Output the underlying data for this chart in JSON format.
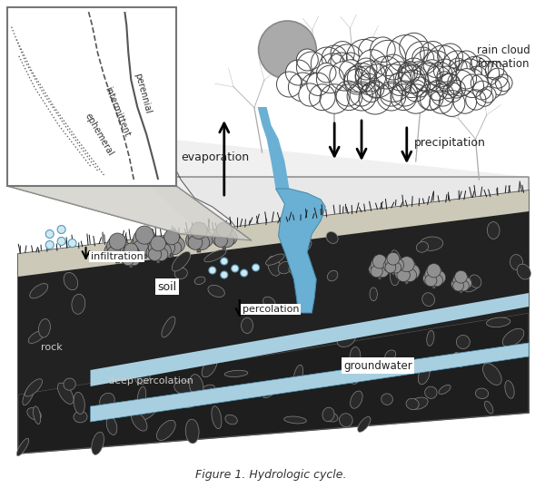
{
  "title": "Figure 1. Hydrologic cycle.",
  "background_color": "#ffffff",
  "labels": {
    "rain_cloud_formation": "rain cloud\nformation",
    "evaporation": "evaporation",
    "precipitation": "precipitation",
    "infiltration": "infiltration",
    "soil": "soil",
    "rock": "rock",
    "deep_percolation": "deep percolation",
    "percolation": "percolation",
    "groundwater": "groundwater",
    "ephemeral": "ephemeral",
    "intermittent": "intermittent",
    "perennial": "perennial"
  },
  "colors": {
    "water_blue": "#6ab0d4",
    "water_blue_light": "#a8cfe0",
    "groundwater_blue": "#8bbfcf",
    "soil_light": "#d0cfc0",
    "soil_mid": "#bfbdae",
    "rock_dark": "#1a1a1a",
    "rock_medium": "#444444",
    "cloud_fill": "#ffffff",
    "cloud_stroke": "#333333",
    "sun_fill": "#a8a8a8",
    "mountain_fill": "#e8e8e8",
    "mountain_stroke": "#444444",
    "tree_fill": "#888888",
    "tree_stroke": "#333333",
    "inset_bg": "#ffffff",
    "inset_stroke": "#777777",
    "arrow_color": "#111111",
    "text_color": "#222222",
    "terrain_top_light": "#d8d8d0",
    "terrain_side_dark": "#a0a09a",
    "wedge_fill": "#c8c8c0"
  }
}
